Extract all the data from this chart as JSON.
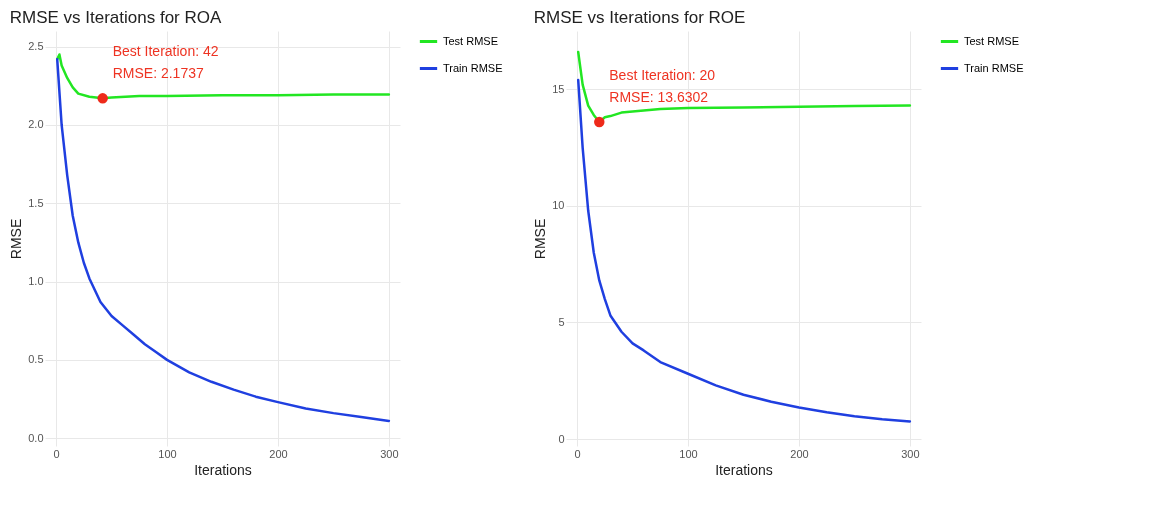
{
  "chart_data": [
    {
      "type": "line",
      "title": "RMSE vs Iterations for ROA",
      "xlabel": "Iterations",
      "ylabel": "RMSE",
      "xlim": [
        -10,
        310
      ],
      "xticks": [
        0,
        100,
        200,
        300
      ],
      "ylim": [
        -0.05,
        2.6
      ],
      "yticks": [
        {
          "value": 0,
          "label": "0.0"
        },
        {
          "value": 0.5,
          "label": "0.5"
        },
        {
          "value": 1,
          "label": "1.0"
        },
        {
          "value": 1.5,
          "label": "1.5"
        },
        {
          "value": 2,
          "label": "2.0"
        },
        {
          "value": 2.5,
          "label": "2.5"
        }
      ],
      "grid": true,
      "legend": "right",
      "series": [
        {
          "name": "Test RMSE",
          "color": "#22e622",
          "x": [
            1,
            3,
            5,
            10,
            15,
            20,
            30,
            42,
            50,
            75,
            100,
            150,
            200,
            250,
            300
          ],
          "values": [
            2.42,
            2.45,
            2.38,
            2.3,
            2.24,
            2.2,
            2.18,
            2.17,
            2.175,
            2.185,
            2.185,
            2.19,
            2.19,
            2.195,
            2.195
          ]
        },
        {
          "name": "Train RMSE",
          "color": "#1f3fe0",
          "x": [
            1,
            5,
            10,
            15,
            20,
            25,
            30,
            40,
            50,
            60,
            70,
            80,
            90,
            100,
            120,
            140,
            160,
            180,
            200,
            225,
            250,
            275,
            300
          ],
          "values": [
            2.42,
            2.0,
            1.68,
            1.42,
            1.25,
            1.12,
            1.02,
            0.87,
            0.78,
            0.72,
            0.66,
            0.6,
            0.55,
            0.5,
            0.42,
            0.36,
            0.31,
            0.265,
            0.23,
            0.19,
            0.16,
            0.135,
            0.11
          ]
        },
        {
          "type": "scatter",
          "color": "#ee2a1a",
          "x": [
            42
          ],
          "values": [
            2.17
          ]
        }
      ],
      "annotations": [
        "Best Iteration: 42",
        "RMSE: 2.1737"
      ]
    },
    {
      "type": "line",
      "title": "RMSE vs Iterations for ROE",
      "xlabel": "Iterations",
      "ylabel": "RMSE",
      "xlim": [
        -10,
        310
      ],
      "xticks": [
        0,
        100,
        200,
        300
      ],
      "ylim": [
        -0.3,
        17.5
      ],
      "yticks": [
        0,
        5,
        10,
        15
      ],
      "grid": true,
      "legend": "right",
      "series": [
        {
          "name": "Test RMSE",
          "color": "#22e622",
          "x": [
            1,
            5,
            10,
            15,
            20,
            25,
            30,
            40,
            50,
            75,
            100,
            150,
            200,
            250,
            300
          ],
          "values": [
            16.6,
            15.2,
            14.3,
            13.9,
            13.6,
            13.8,
            13.85,
            14.0,
            14.05,
            14.15,
            14.2,
            14.22,
            14.25,
            14.28,
            14.3
          ]
        },
        {
          "name": "Train RMSE",
          "color": "#1f3fe0",
          "x": [
            1,
            5,
            10,
            15,
            20,
            25,
            30,
            40,
            50,
            60,
            75,
            100,
            125,
            150,
            175,
            200,
            225,
            250,
            275,
            300
          ],
          "values": [
            15.4,
            12.5,
            9.8,
            8.0,
            6.8,
            6.0,
            5.3,
            4.6,
            4.1,
            3.8,
            3.3,
            2.8,
            2.3,
            1.9,
            1.6,
            1.35,
            1.15,
            0.98,
            0.85,
            0.75
          ]
        },
        {
          "type": "scatter",
          "color": "#ee2a1a",
          "x": [
            20
          ],
          "values": [
            13.6
          ]
        }
      ],
      "annotations": [
        "Best Iteration: 20",
        "RMSE: 13.6302"
      ]
    }
  ]
}
